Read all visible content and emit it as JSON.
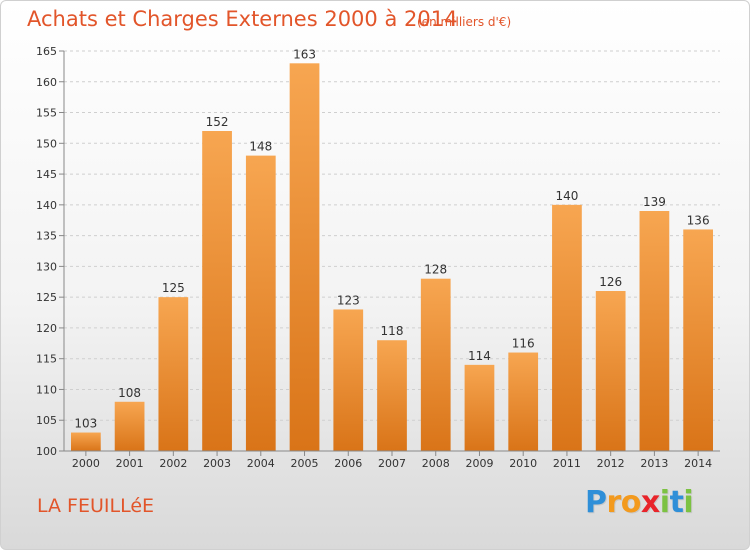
{
  "header": {
    "title": "Achats et Charges Externes 2000 à 2014",
    "subtitle": "(en milliers d'€)"
  },
  "footer": {
    "city": "LA FEUILLéE",
    "logo_letters": [
      {
        "ch": "P",
        "color": "#2f8fd8"
      },
      {
        "ch": "r",
        "color": "#f39a1e"
      },
      {
        "ch": "o",
        "color": "#f39a1e"
      },
      {
        "ch": "x",
        "color": "#e8242a"
      },
      {
        "ch": "i",
        "color": "#7cc242"
      },
      {
        "ch": "t",
        "color": "#2f8fd8"
      },
      {
        "ch": "i",
        "color": "#7cc242"
      }
    ]
  },
  "chart_data": {
    "type": "bar",
    "title": "Achats et Charges Externes 2000 à 2014",
    "subtitle": "(en milliers d'€)",
    "categories": [
      "2000",
      "2001",
      "2002",
      "2003",
      "2004",
      "2005",
      "2006",
      "2007",
      "2008",
      "2009",
      "2010",
      "2011",
      "2012",
      "2013",
      "2014"
    ],
    "values": [
      103,
      108,
      125,
      152,
      148,
      163,
      123,
      118,
      128,
      114,
      116,
      140,
      126,
      139,
      136
    ],
    "ylim": [
      100,
      165
    ],
    "yticks": [
      100,
      105,
      110,
      115,
      120,
      125,
      130,
      135,
      140,
      145,
      150,
      155,
      160,
      165
    ],
    "grid": true,
    "legend": "none",
    "colors": {
      "bar_top": "#f7a651",
      "bar_bottom": "#d97418",
      "grid": "#cfcfcf",
      "axis": "#888888"
    }
  }
}
